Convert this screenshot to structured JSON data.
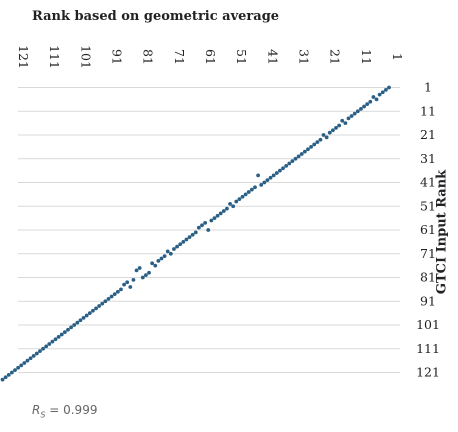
{
  "chart_data": {
    "type": "scatter",
    "title": "Rank based on geometric average",
    "xlabel": "Rank based on geometric average",
    "ylabel": "GTCI Input Rank",
    "x_axis_position": "top",
    "x_reversed": true,
    "y_reversed": true,
    "xlim": [
      1,
      125
    ],
    "ylim": [
      1,
      125
    ],
    "x_ticks": [
      121,
      111,
      101,
      91,
      81,
      71,
      61,
      51,
      41,
      31,
      21,
      11,
      1
    ],
    "y_ticks": [
      1,
      11,
      21,
      31,
      41,
      51,
      61,
      71,
      81,
      91,
      101,
      111,
      121
    ],
    "grid": "horizontal",
    "point_color": "#2a5f86",
    "annotation": {
      "symbol": "R",
      "subscript": "S",
      "text": " = 0.999"
    },
    "points": [
      [
        1,
        1
      ],
      [
        2,
        2
      ],
      [
        3,
        3
      ],
      [
        4,
        4
      ],
      [
        5,
        6
      ],
      [
        6,
        5
      ],
      [
        7,
        7
      ],
      [
        8,
        8
      ],
      [
        9,
        9
      ],
      [
        10,
        10
      ],
      [
        11,
        11
      ],
      [
        12,
        12
      ],
      [
        13,
        13
      ],
      [
        14,
        14
      ],
      [
        15,
        16
      ],
      [
        16,
        15
      ],
      [
        17,
        17
      ],
      [
        18,
        18
      ],
      [
        19,
        19
      ],
      [
        20,
        20
      ],
      [
        21,
        22
      ],
      [
        22,
        21
      ],
      [
        23,
        23
      ],
      [
        24,
        24
      ],
      [
        25,
        25
      ],
      [
        26,
        26
      ],
      [
        27,
        27
      ],
      [
        28,
        28
      ],
      [
        29,
        29
      ],
      [
        30,
        30
      ],
      [
        31,
        31
      ],
      [
        32,
        32
      ],
      [
        33,
        33
      ],
      [
        34,
        34
      ],
      [
        35,
        35
      ],
      [
        36,
        36
      ],
      [
        37,
        37
      ],
      [
        38,
        38
      ],
      [
        39,
        39
      ],
      [
        40,
        40
      ],
      [
        41,
        41
      ],
      [
        42,
        42
      ],
      [
        43,
        38
      ],
      [
        44,
        43
      ],
      [
        45,
        44
      ],
      [
        46,
        45
      ],
      [
        47,
        46
      ],
      [
        48,
        47
      ],
      [
        49,
        48
      ],
      [
        50,
        49
      ],
      [
        51,
        51
      ],
      [
        52,
        50
      ],
      [
        53,
        52
      ],
      [
        54,
        53
      ],
      [
        55,
        54
      ],
      [
        56,
        55
      ],
      [
        57,
        56
      ],
      [
        58,
        57
      ],
      [
        59,
        61
      ],
      [
        60,
        58
      ],
      [
        61,
        59
      ],
      [
        62,
        60
      ],
      [
        63,
        62
      ],
      [
        64,
        63
      ],
      [
        65,
        64
      ],
      [
        66,
        65
      ],
      [
        67,
        66
      ],
      [
        68,
        67
      ],
      [
        69,
        68
      ],
      [
        70,
        69
      ],
      [
        71,
        71
      ],
      [
        72,
        70
      ],
      [
        73,
        72
      ],
      [
        74,
        73
      ],
      [
        75,
        74
      ],
      [
        76,
        76
      ],
      [
        77,
        75
      ],
      [
        78,
        79
      ],
      [
        79,
        80
      ],
      [
        80,
        81
      ],
      [
        81,
        77
      ],
      [
        82,
        78
      ],
      [
        83,
        82
      ],
      [
        84,
        85
      ],
      [
        85,
        83
      ],
      [
        86,
        84
      ],
      [
        87,
        86
      ],
      [
        88,
        87
      ],
      [
        89,
        88
      ],
      [
        90,
        89
      ],
      [
        91,
        90
      ],
      [
        92,
        91
      ],
      [
        93,
        92
      ],
      [
        94,
        93
      ],
      [
        95,
        94
      ],
      [
        96,
        95
      ],
      [
        97,
        96
      ],
      [
        98,
        97
      ],
      [
        99,
        98
      ],
      [
        100,
        99
      ],
      [
        101,
        100
      ],
      [
        102,
        101
      ],
      [
        103,
        102
      ],
      [
        104,
        103
      ],
      [
        105,
        104
      ],
      [
        106,
        105
      ],
      [
        107,
        106
      ],
      [
        108,
        107
      ],
      [
        109,
        108
      ],
      [
        110,
        109
      ],
      [
        111,
        110
      ],
      [
        112,
        111
      ],
      [
        113,
        112
      ],
      [
        114,
        113
      ],
      [
        115,
        114
      ],
      [
        116,
        115
      ],
      [
        117,
        116
      ],
      [
        118,
        117
      ],
      [
        119,
        118
      ],
      [
        120,
        119
      ],
      [
        121,
        120
      ],
      [
        122,
        121
      ],
      [
        123,
        122
      ],
      [
        124,
        123
      ],
      [
        125,
        124
      ]
    ]
  }
}
